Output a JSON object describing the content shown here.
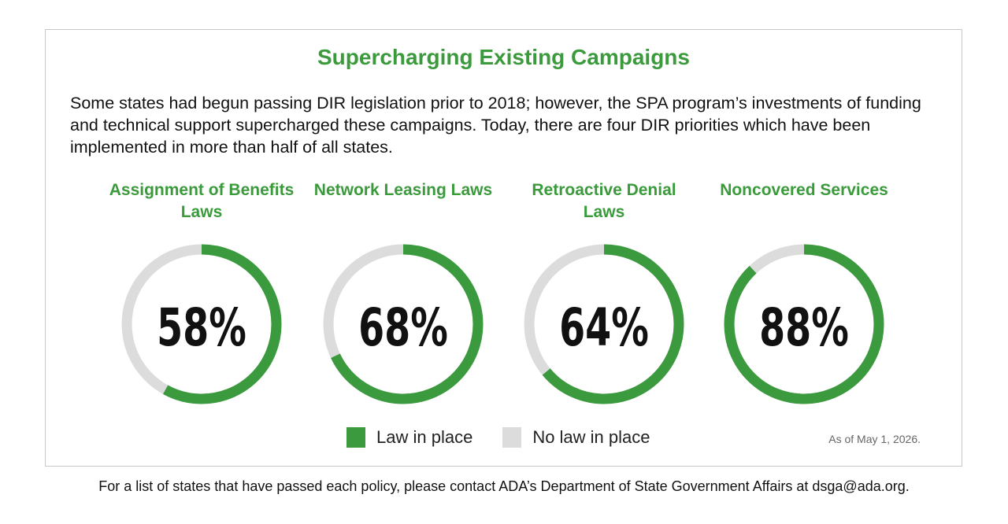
{
  "panel": {
    "title": "Supercharging Existing Campaigns",
    "intro": "Some states had begun passing DIR legislation prior to 2018; however, the SPA program’s investments of funding and technical support supercharged these campaigns. Today, there are four DIR priorities which have been implemented in more than half of all states."
  },
  "chart_data": {
    "type": "pie",
    "style": "donut",
    "charts": [
      {
        "title": "Assignment of Benefits Laws",
        "label": "58%",
        "value": 58
      },
      {
        "title": "Network Leasing Laws",
        "label": "68%",
        "value": 68
      },
      {
        "title": "Retroactive Denial Laws",
        "label": "64%",
        "value": 64
      },
      {
        "title": "Noncovered Services",
        "label": "88%",
        "value": 88
      }
    ],
    "legend": [
      {
        "name": "Law in place",
        "color": "#3a9a3d"
      },
      {
        "name": "No law in place",
        "color": "#dcdcdc"
      }
    ],
    "legend_position": "bottom"
  },
  "note": "As of May 1, 2026.",
  "footer": "For a list of states that have passed each policy, please contact ADA’s Department of State Government Affairs at dsga@ada.org."
}
